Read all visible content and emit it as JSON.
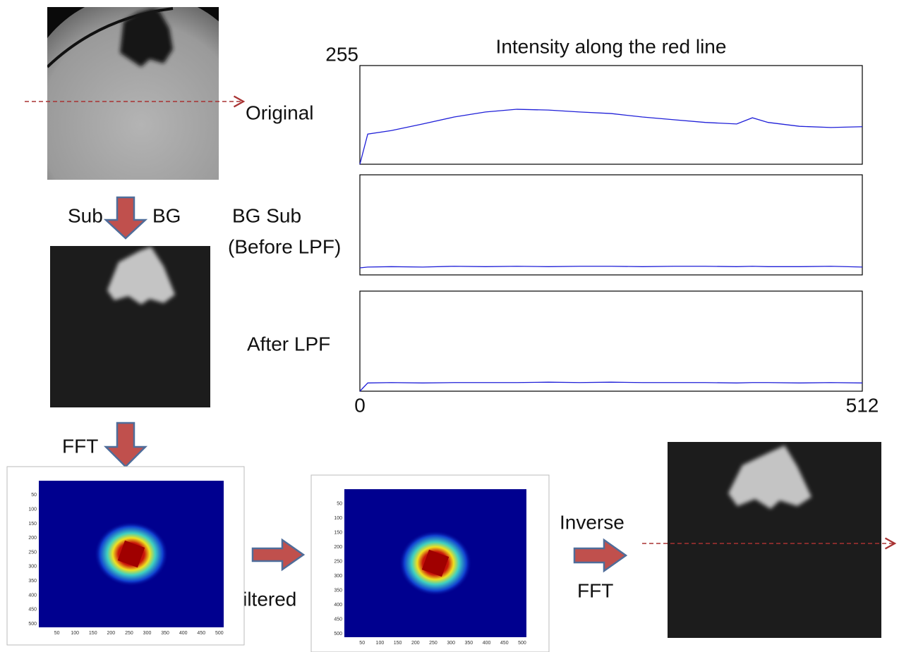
{
  "chart_data": [
    {
      "type": "line",
      "title": "Intensity along the red line",
      "x": [
        0,
        8,
        32,
        64,
        96,
        128,
        160,
        192,
        224,
        256,
        288,
        320,
        352,
        384,
        400,
        416,
        448,
        480,
        512
      ],
      "values": [
        0,
        78,
        87,
        104,
        122,
        135,
        142,
        140,
        135,
        131,
        122,
        115,
        108,
        104,
        120,
        108,
        98,
        95,
        97
      ],
      "color": "#1f1fd8",
      "xlim": [
        0,
        512
      ],
      "ylim": [
        0,
        255
      ],
      "yticks": [
        255
      ]
    },
    {
      "type": "line",
      "x": [
        0,
        8,
        32,
        64,
        96,
        128,
        160,
        192,
        224,
        256,
        288,
        320,
        352,
        384,
        400,
        416,
        448,
        480,
        512
      ],
      "values": [
        18,
        20,
        21,
        20,
        22,
        21,
        22,
        21,
        22,
        22,
        21,
        22,
        22,
        21,
        22,
        21,
        21,
        22,
        20
      ],
      "color": "#1f1fd8",
      "xlim": [
        0,
        512
      ],
      "ylim": [
        0,
        255
      ]
    },
    {
      "type": "line",
      "x": [
        0,
        8,
        32,
        64,
        96,
        128,
        160,
        192,
        224,
        256,
        288,
        320,
        352,
        384,
        400,
        416,
        448,
        480,
        512
      ],
      "values": [
        0,
        21,
        22,
        21,
        22,
        22,
        22,
        23,
        22,
        23,
        22,
        22,
        22,
        21,
        22,
        22,
        21,
        22,
        21
      ],
      "color": "#1f1fd8",
      "xlim": [
        0,
        512
      ],
      "ylim": [
        0,
        255
      ],
      "xticks": [
        0,
        512
      ]
    }
  ],
  "labels": {
    "original": "Original",
    "bg_sub": "BG Sub",
    "before_lpf": "(Before LPF)",
    "after_lpf": "After LPF",
    "sub": "Sub",
    "bg": "BG",
    "fft": "FFT",
    "filtered": "Filtered",
    "inverse": "Inverse",
    "inverse_fft": "FFT"
  },
  "spectra": [
    {
      "xticks": [
        50,
        100,
        150,
        200,
        250,
        300,
        350,
        400,
        450,
        500
      ],
      "yticks": [
        50,
        100,
        150,
        200,
        250,
        300,
        350,
        400,
        450,
        500
      ]
    },
    {
      "xticks": [
        50,
        100,
        150,
        200,
        250,
        300,
        350,
        400,
        450,
        500
      ],
      "yticks": [
        50,
        100,
        150,
        200,
        250,
        300,
        350,
        400,
        450,
        500
      ]
    }
  ]
}
